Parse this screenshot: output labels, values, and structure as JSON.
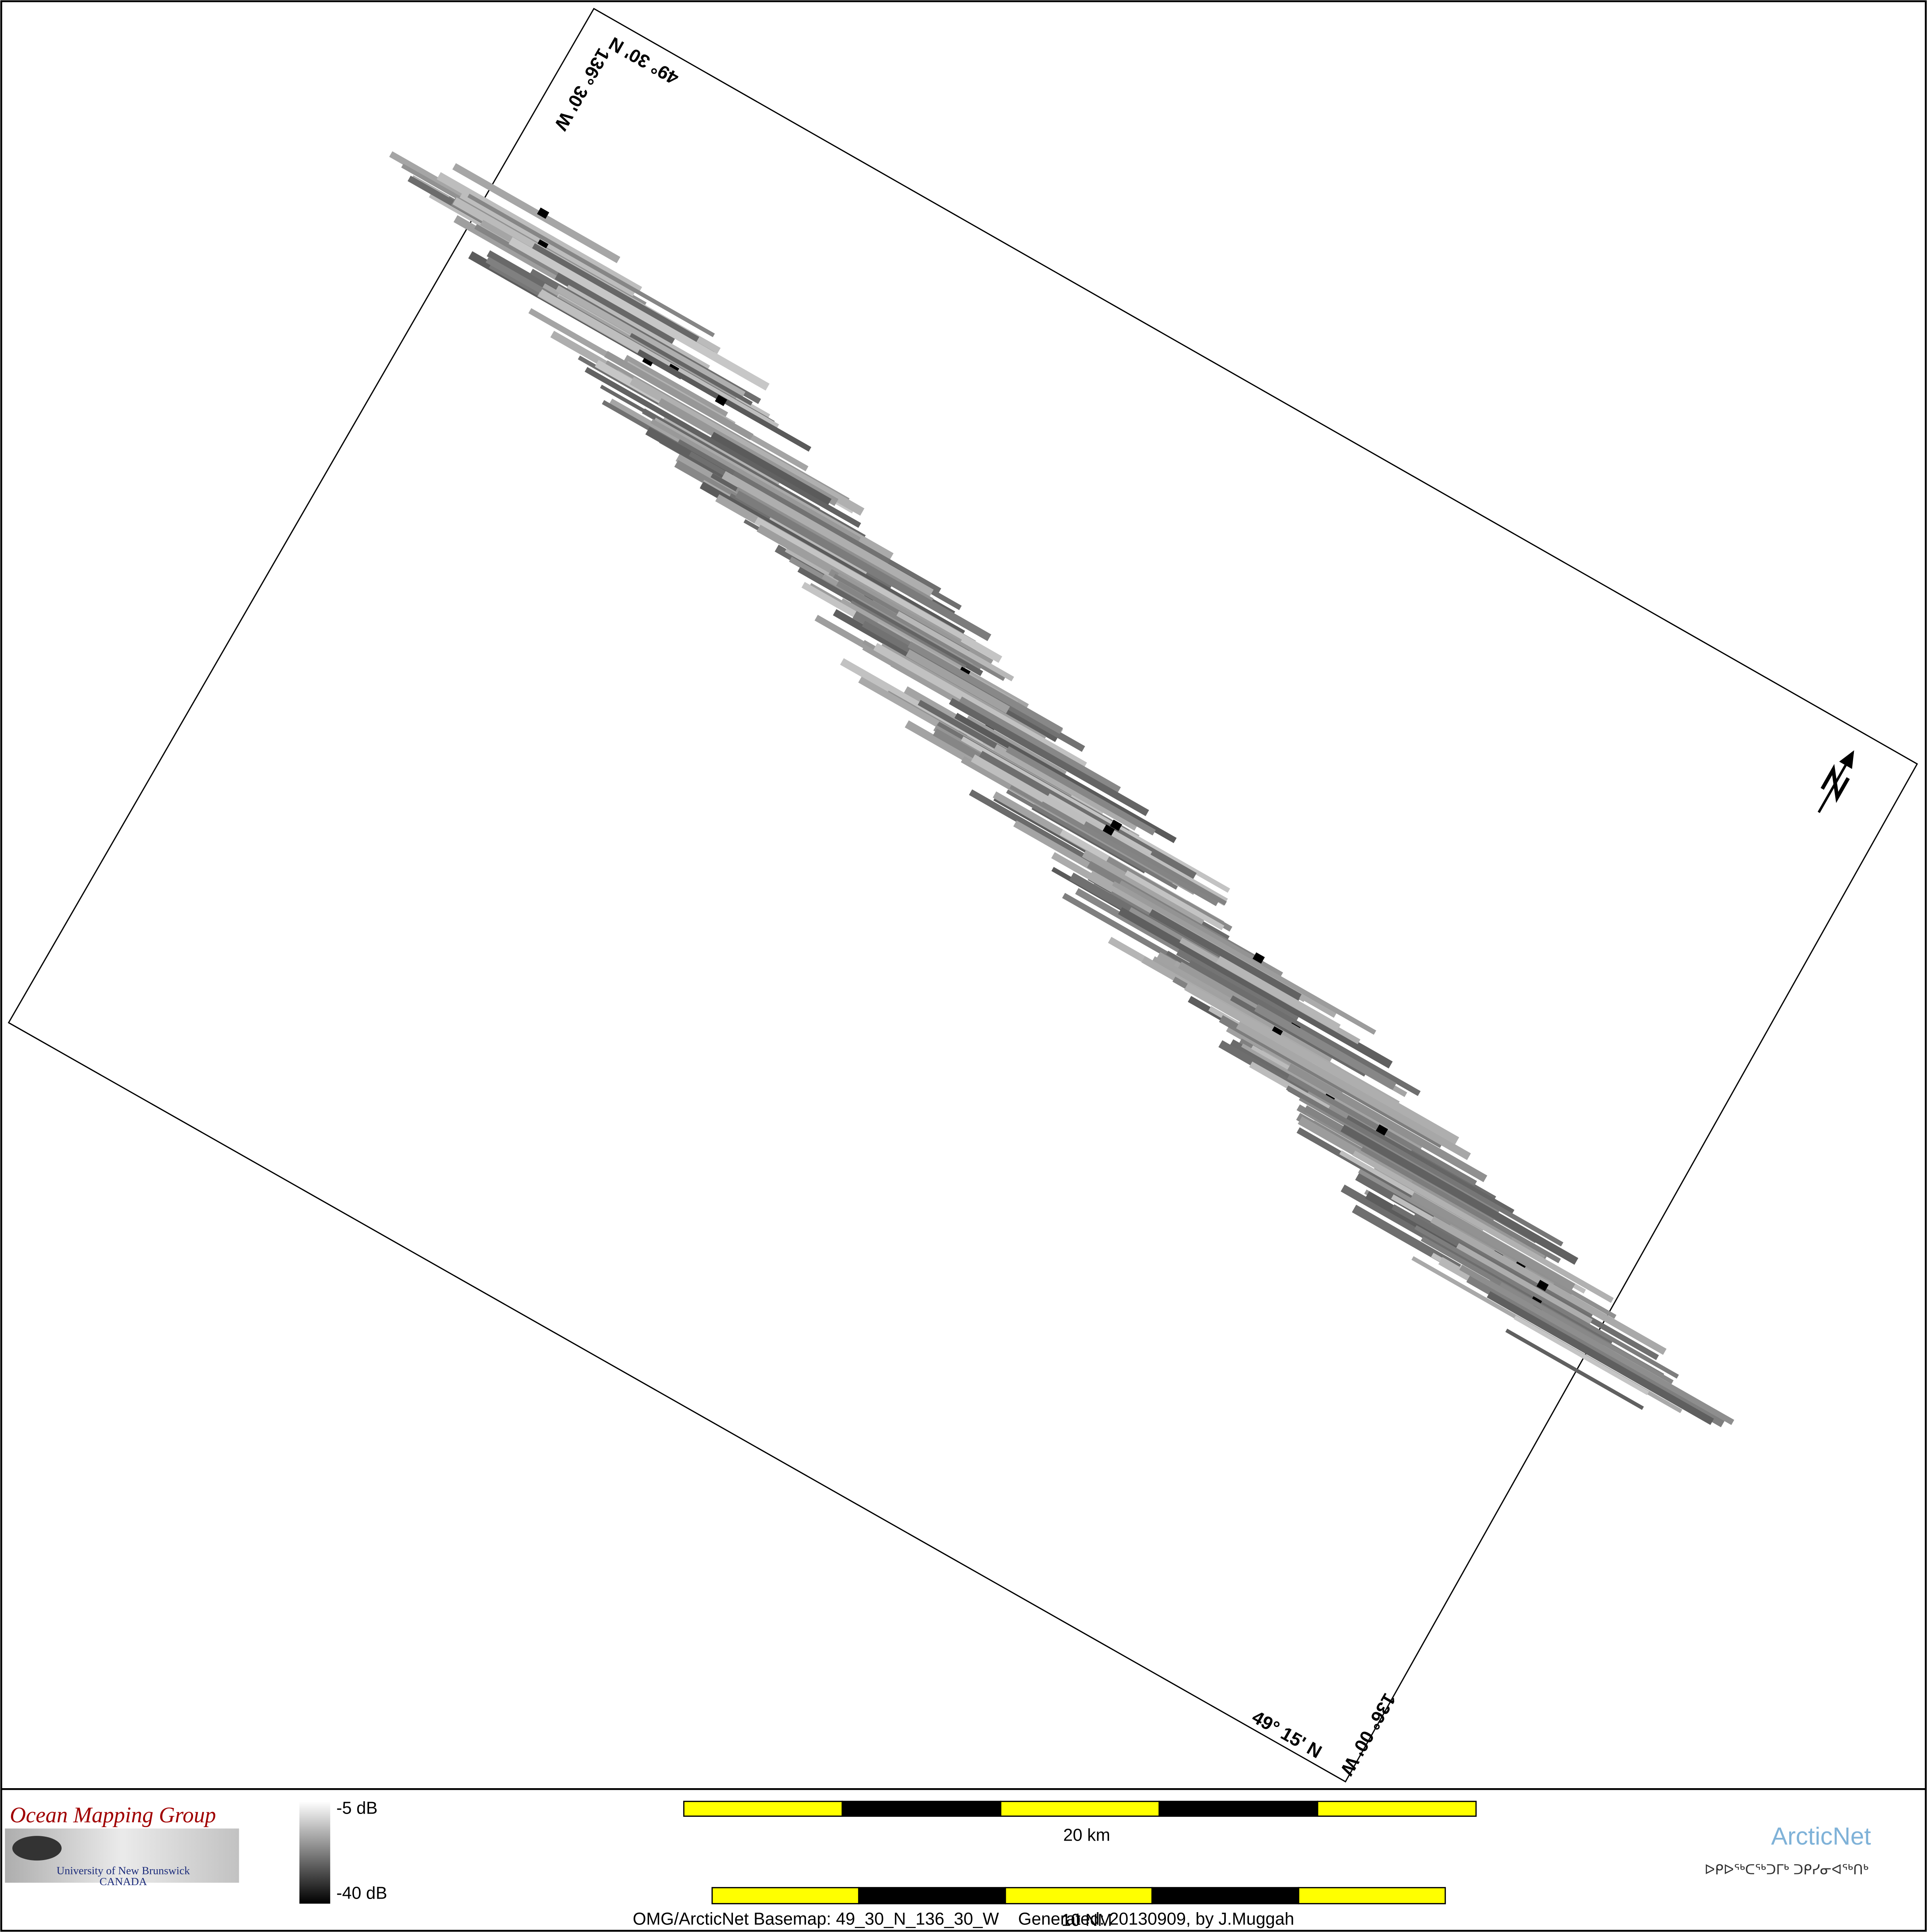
{
  "map": {
    "graticule": {
      "top_lat": "49° 30' N",
      "left_lon": "136° 30' W",
      "bottom_lat": "49° 15' N",
      "right_lon": "136° 00' W"
    },
    "logo": {
      "title": "Ocean Mapping Group",
      "university": "University of New Brunswick",
      "country": "CANADA"
    },
    "legend": {
      "max_label": "-5 dB",
      "min_label": "-40 dB"
    },
    "scale_bars": {
      "km_label": "20 km",
      "nm_label": "10 NM"
    },
    "footer": "OMG/ArcticNet Basemap: 49_30_N_136_30_W    Generated: 20130909, by J.Muggah",
    "partner": {
      "name": "ArcticNet",
      "name_inuktitut": "ᐅᑭᐅᖅᑕᖅᑐᒥᒃ ᑐᑭᓯᓂᐊᖅᑎᒃ"
    }
  }
}
